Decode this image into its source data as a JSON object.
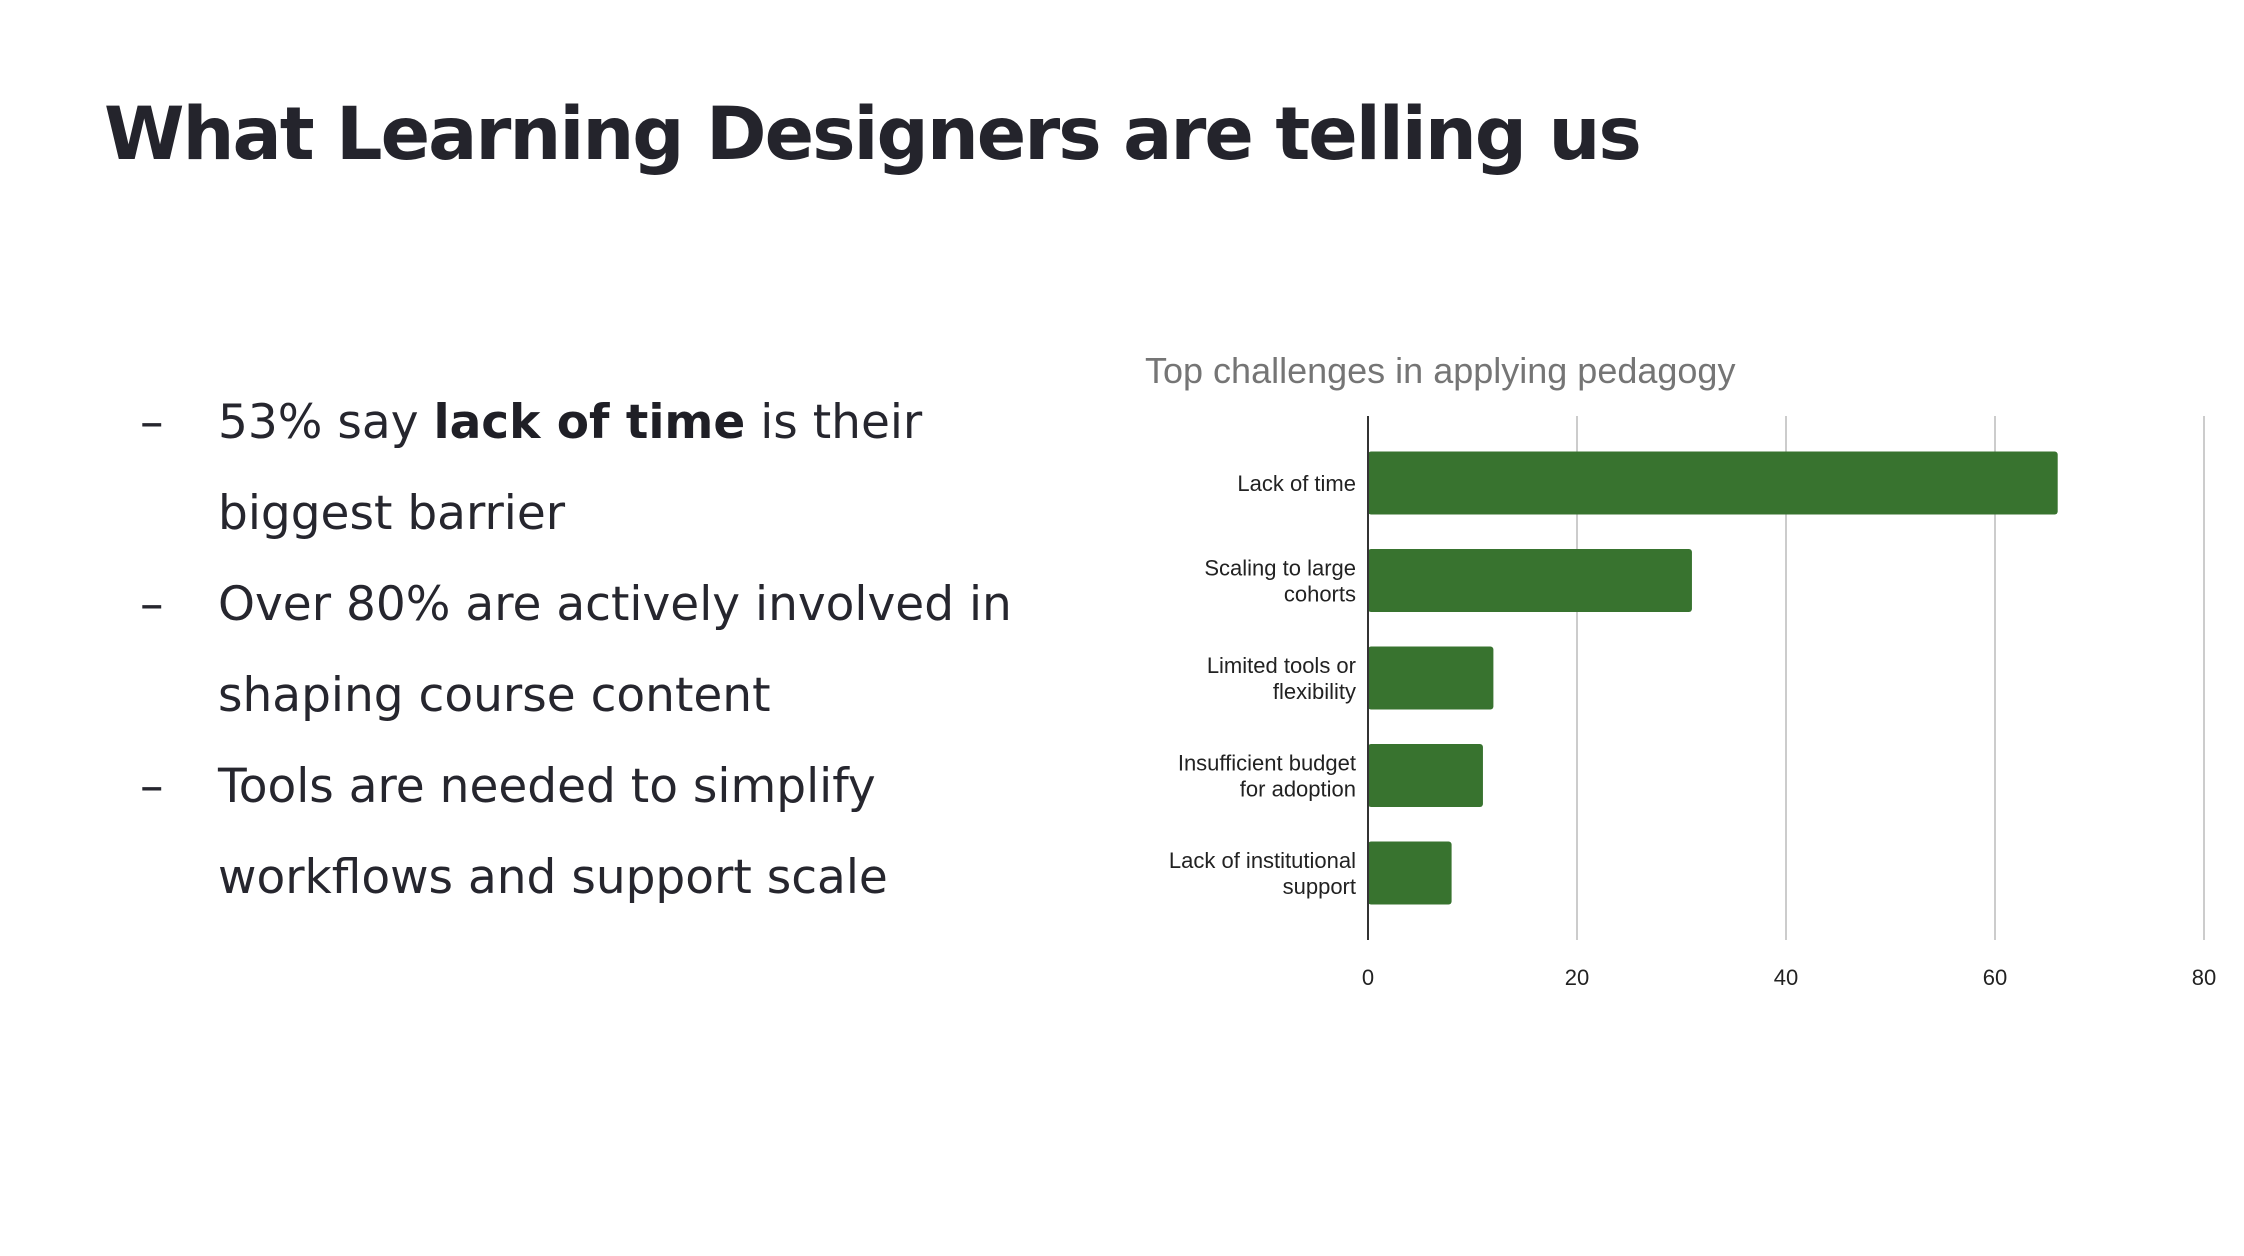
{
  "slide": {
    "title": "What Learning Designers are telling us",
    "bullets": [
      {
        "dash": "–",
        "pre": "53% say ",
        "bold": "lack of time",
        "post": " is their biggest barrier"
      },
      {
        "dash": "–",
        "pre": "Over 80% are actively involved in shaping course content",
        "bold": "",
        "post": ""
      },
      {
        "dash": "–",
        "pre": "Tools are needed to simplify workflows and support scale",
        "bold": "",
        "post": ""
      }
    ]
  },
  "chart_data": {
    "type": "bar",
    "orientation": "horizontal",
    "title": "Top challenges in applying pedagogy",
    "categories": [
      [
        "Lack of time"
      ],
      [
        "Scaling to large",
        "cohorts"
      ],
      [
        "Limited tools or",
        "flexibility"
      ],
      [
        "Insufficient budget",
        "for adoption"
      ],
      [
        "Lack of institutional",
        "support"
      ]
    ],
    "values": [
      66,
      31,
      12,
      11,
      8
    ],
    "xlim": [
      0,
      80
    ],
    "xticks": [
      0,
      20,
      40,
      60,
      80
    ],
    "grid": true,
    "bar_color": "#38732f",
    "xlabel": "",
    "ylabel": ""
  }
}
